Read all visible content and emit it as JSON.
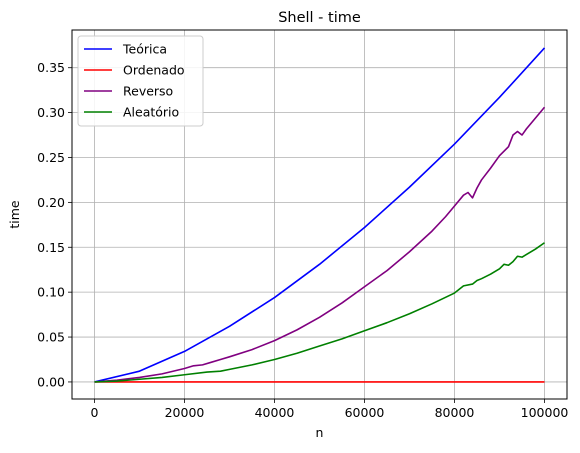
{
  "chart_data": {
    "type": "line",
    "title": "Shell - time",
    "xlabel": "n",
    "ylabel": "time",
    "xlim": [
      -5000,
      105000
    ],
    "ylim": [
      -0.019,
      0.392
    ],
    "xticks": [
      0,
      20000,
      40000,
      60000,
      80000,
      100000
    ],
    "xtick_labels": [
      "0",
      "20000",
      "40000",
      "60000",
      "80000",
      "100000"
    ],
    "yticks": [
      0.0,
      0.05,
      0.1,
      0.15,
      0.2,
      0.25,
      0.3,
      0.35
    ],
    "ytick_labels": [
      "0.00",
      "0.05",
      "0.10",
      "0.15",
      "0.20",
      "0.25",
      "0.30",
      "0.35"
    ],
    "grid": true,
    "legend_position": "top-left",
    "series": [
      {
        "name": "Teórica",
        "color": "#0000ff",
        "x": [
          0,
          10000,
          20000,
          30000,
          40000,
          50000,
          60000,
          70000,
          80000,
          90000,
          100000
        ],
        "y": [
          0.0,
          0.012,
          0.034,
          0.062,
          0.094,
          0.131,
          0.172,
          0.217,
          0.265,
          0.317,
          0.372
        ]
      },
      {
        "name": "Ordenado",
        "color": "#ff0000",
        "x": [
          0,
          10000,
          20000,
          30000,
          40000,
          50000,
          60000,
          70000,
          80000,
          90000,
          100000
        ],
        "y": [
          0.0,
          0.0,
          0.0,
          0.0,
          0.0,
          0.0,
          0.0,
          0.0,
          0.0,
          0.0,
          0.0
        ]
      },
      {
        "name": "Reverso",
        "color": "#800080",
        "x": [
          0,
          5000,
          10000,
          15000,
          20000,
          22000,
          24000,
          26000,
          28000,
          30000,
          35000,
          40000,
          45000,
          50000,
          55000,
          60000,
          65000,
          70000,
          75000,
          78000,
          80000,
          82000,
          83000,
          84000,
          85000,
          86000,
          88000,
          90000,
          92000,
          93000,
          94000,
          95000,
          96000,
          98000,
          100000
        ],
        "y": [
          0.0,
          0.002,
          0.005,
          0.009,
          0.015,
          0.018,
          0.019,
          0.022,
          0.025,
          0.028,
          0.036,
          0.046,
          0.058,
          0.072,
          0.088,
          0.106,
          0.124,
          0.145,
          0.168,
          0.184,
          0.196,
          0.208,
          0.211,
          0.205,
          0.216,
          0.225,
          0.238,
          0.252,
          0.262,
          0.275,
          0.279,
          0.275,
          0.282,
          0.294,
          0.306
        ]
      },
      {
        "name": "Aleatório",
        "color": "#008000",
        "x": [
          0,
          5000,
          10000,
          15000,
          20000,
          25000,
          28000,
          30000,
          35000,
          40000,
          45000,
          50000,
          55000,
          60000,
          65000,
          70000,
          75000,
          80000,
          82000,
          84000,
          85000,
          86000,
          88000,
          90000,
          91000,
          92000,
          93000,
          94000,
          95000,
          96000,
          98000,
          100000
        ],
        "y": [
          0.0,
          0.001,
          0.003,
          0.005,
          0.008,
          0.011,
          0.012,
          0.014,
          0.019,
          0.025,
          0.032,
          0.04,
          0.048,
          0.057,
          0.066,
          0.076,
          0.087,
          0.099,
          0.107,
          0.109,
          0.113,
          0.115,
          0.12,
          0.126,
          0.131,
          0.13,
          0.134,
          0.14,
          0.139,
          0.142,
          0.148,
          0.155
        ]
      }
    ]
  }
}
